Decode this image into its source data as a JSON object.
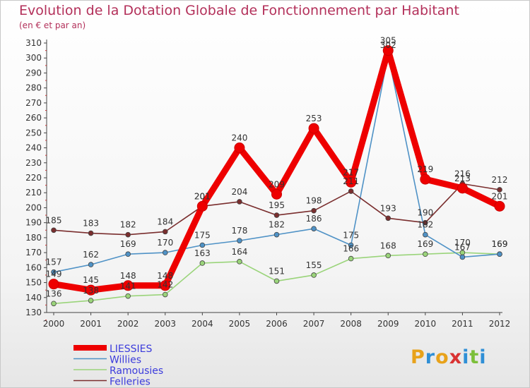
{
  "title": "Evolution de la Dotation Globale de Fonctionnement par Habitant",
  "subtitle": "(en € et par an)",
  "logo": [
    "P",
    "r",
    "o",
    "x",
    "i",
    "t",
    "i"
  ],
  "logo_colors": [
    "#e8a21a",
    "#2f8fd6",
    "#e8a21a",
    "#d93232",
    "#2f8fd6",
    "#7cbf3a",
    "#2f8fd6"
  ],
  "chart_data": {
    "type": "line",
    "x": [
      "2000",
      "2001",
      "2002",
      "2003",
      "2004",
      "2005",
      "2006",
      "2007",
      "2008",
      "2009",
      "2010",
      "2011",
      "2012"
    ],
    "ylim": [
      130,
      310
    ],
    "yticks": [
      130,
      140,
      150,
      160,
      170,
      180,
      190,
      200,
      210,
      220,
      230,
      240,
      250,
      260,
      270,
      280,
      290,
      300,
      310
    ],
    "grid": false,
    "legend_position": "bottom-left",
    "series": [
      {
        "name": "LIESSIES",
        "color": "#ee0000",
        "values": [
          149,
          145,
          148,
          148,
          201,
          240,
          209,
          253,
          217,
          305,
          219,
          213,
          201
        ]
      },
      {
        "name": "Willies",
        "color": "#4f92c6",
        "values": [
          157,
          162,
          169,
          170,
          175,
          178,
          182,
          186,
          175,
          302,
          182,
          167,
          169
        ]
      },
      {
        "name": "Ramousies",
        "color": "#9ad47a",
        "values": [
          136,
          138,
          141,
          142,
          163,
          164,
          151,
          155,
          166,
          168,
          169,
          170,
          169
        ]
      },
      {
        "name": "Felleries",
        "color": "#7a2e2e",
        "values": [
          185,
          183,
          182,
          184,
          201,
          204,
          195,
          198,
          211,
          193,
          190,
          216,
          212
        ]
      }
    ]
  }
}
